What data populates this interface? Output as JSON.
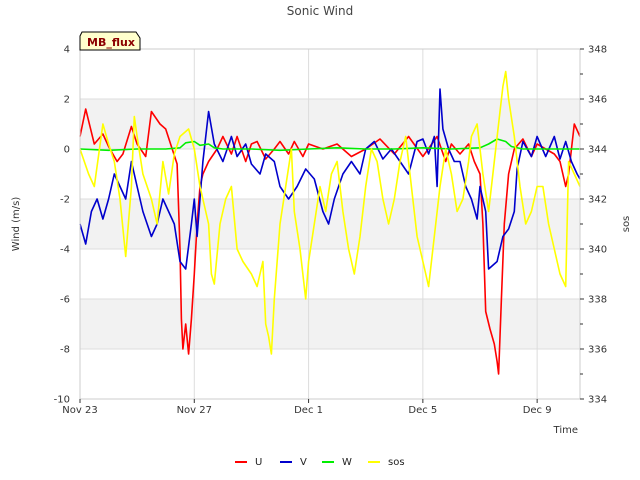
{
  "chart_data": {
    "type": "line",
    "title": "Sonic Wind",
    "xlabel": "Time",
    "ylabel": "Wind (m/s)",
    "y2label": "sos",
    "badge": "MB_flux",
    "x_range_days": [
      0,
      17.5
    ],
    "ylim": [
      -10,
      4
    ],
    "y2lim": [
      334,
      348
    ],
    "x_ticks": [
      {
        "day": 0,
        "label": "Nov 23"
      },
      {
        "day": 4,
        "label": "Nov 27"
      },
      {
        "day": 8,
        "label": "Dec 1"
      },
      {
        "day": 12,
        "label": "Dec 5"
      },
      {
        "day": 16,
        "label": "Dec 9"
      }
    ],
    "y_ticks": [
      4,
      2,
      0,
      -2,
      -4,
      -6,
      -8,
      -10
    ],
    "y2_ticks": [
      348,
      346,
      344,
      342,
      340,
      338,
      336,
      334
    ],
    "series": [
      {
        "name": "U",
        "axis": "left",
        "color": "#ff0000",
        "points": [
          [
            0.0,
            0.5
          ],
          [
            0.2,
            1.6
          ],
          [
            0.5,
            0.2
          ],
          [
            0.8,
            0.6
          ],
          [
            1.0,
            0.1
          ],
          [
            1.3,
            -0.5
          ],
          [
            1.5,
            -0.2
          ],
          [
            1.8,
            0.9
          ],
          [
            2.0,
            0.2
          ],
          [
            2.3,
            -0.3
          ],
          [
            2.5,
            1.5
          ],
          [
            2.8,
            1.0
          ],
          [
            3.0,
            0.8
          ],
          [
            3.2,
            0.1
          ],
          [
            3.4,
            -0.6
          ],
          [
            3.5,
            -4.0
          ],
          [
            3.55,
            -6.8
          ],
          [
            3.6,
            -8.0
          ],
          [
            3.7,
            -7.0
          ],
          [
            3.8,
            -8.2
          ],
          [
            3.9,
            -6.8
          ],
          [
            4.0,
            -5.0
          ],
          [
            4.1,
            -3.0
          ],
          [
            4.2,
            -1.5
          ],
          [
            4.3,
            -1.0
          ],
          [
            4.5,
            -0.5
          ],
          [
            4.8,
            0.0
          ],
          [
            5.0,
            0.5
          ],
          [
            5.3,
            -0.2
          ],
          [
            5.5,
            0.5
          ],
          [
            5.8,
            -0.5
          ],
          [
            6.0,
            0.2
          ],
          [
            6.2,
            0.3
          ],
          [
            6.5,
            -0.4
          ],
          [
            6.8,
            0.0
          ],
          [
            7.0,
            0.3
          ],
          [
            7.3,
            -0.2
          ],
          [
            7.5,
            0.3
          ],
          [
            7.8,
            -0.3
          ],
          [
            8.0,
            0.2
          ],
          [
            8.5,
            0.0
          ],
          [
            9.0,
            0.2
          ],
          [
            9.5,
            -0.3
          ],
          [
            10.0,
            0.0
          ],
          [
            10.5,
            0.4
          ],
          [
            11.0,
            -0.2
          ],
          [
            11.5,
            0.5
          ],
          [
            12.0,
            -0.3
          ],
          [
            12.5,
            0.5
          ],
          [
            12.8,
            -0.5
          ],
          [
            13.0,
            0.2
          ],
          [
            13.3,
            -0.2
          ],
          [
            13.6,
            0.2
          ],
          [
            13.8,
            -0.5
          ],
          [
            14.0,
            -1.0
          ],
          [
            14.1,
            -3.0
          ],
          [
            14.2,
            -6.5
          ],
          [
            14.35,
            -7.2
          ],
          [
            14.5,
            -7.8
          ],
          [
            14.6,
            -8.5
          ],
          [
            14.65,
            -9.0
          ],
          [
            14.75,
            -6.0
          ],
          [
            14.85,
            -3.0
          ],
          [
            15.0,
            -1.0
          ],
          [
            15.2,
            0.0
          ],
          [
            15.5,
            0.4
          ],
          [
            15.8,
            -0.3
          ],
          [
            16.0,
            0.2
          ],
          [
            16.3,
            0.0
          ],
          [
            16.6,
            -0.2
          ],
          [
            16.8,
            -0.5
          ],
          [
            17.0,
            -1.5
          ],
          [
            17.1,
            -1.0
          ],
          [
            17.3,
            1.0
          ],
          [
            17.5,
            0.5
          ]
        ]
      },
      {
        "name": "V",
        "axis": "left",
        "color": "#0000cc",
        "points": [
          [
            0.0,
            -3.0
          ],
          [
            0.2,
            -3.8
          ],
          [
            0.4,
            -2.5
          ],
          [
            0.6,
            -2.0
          ],
          [
            0.8,
            -2.8
          ],
          [
            1.0,
            -2.0
          ],
          [
            1.2,
            -1.0
          ],
          [
            1.4,
            -1.5
          ],
          [
            1.6,
            -2.0
          ],
          [
            1.8,
            -0.5
          ],
          [
            2.0,
            -1.5
          ],
          [
            2.2,
            -2.5
          ],
          [
            2.5,
            -3.5
          ],
          [
            2.7,
            -3.0
          ],
          [
            2.9,
            -2.0
          ],
          [
            3.1,
            -2.5
          ],
          [
            3.3,
            -3.0
          ],
          [
            3.5,
            -4.5
          ],
          [
            3.7,
            -4.8
          ],
          [
            3.9,
            -3.0
          ],
          [
            4.0,
            -2.0
          ],
          [
            4.1,
            -3.5
          ],
          [
            4.2,
            -2.0
          ],
          [
            4.3,
            -0.5
          ],
          [
            4.5,
            1.5
          ],
          [
            4.7,
            0.2
          ],
          [
            5.0,
            -0.5
          ],
          [
            5.3,
            0.5
          ],
          [
            5.5,
            -0.3
          ],
          [
            5.8,
            0.2
          ],
          [
            6.0,
            -0.6
          ],
          [
            6.3,
            -1.0
          ],
          [
            6.5,
            -0.2
          ],
          [
            6.8,
            -0.5
          ],
          [
            7.0,
            -1.5
          ],
          [
            7.3,
            -2.0
          ],
          [
            7.6,
            -1.5
          ],
          [
            7.9,
            -0.8
          ],
          [
            8.2,
            -1.2
          ],
          [
            8.5,
            -2.5
          ],
          [
            8.7,
            -3.0
          ],
          [
            8.9,
            -2.0
          ],
          [
            9.2,
            -1.0
          ],
          [
            9.5,
            -0.5
          ],
          [
            9.8,
            -1.0
          ],
          [
            10.0,
            0.0
          ],
          [
            10.3,
            0.3
          ],
          [
            10.6,
            -0.4
          ],
          [
            10.9,
            0.0
          ],
          [
            11.2,
            -0.5
          ],
          [
            11.5,
            -1.0
          ],
          [
            11.8,
            0.3
          ],
          [
            12.0,
            0.4
          ],
          [
            12.2,
            -0.2
          ],
          [
            12.4,
            0.5
          ],
          [
            12.5,
            -1.5
          ],
          [
            12.6,
            2.4
          ],
          [
            12.7,
            0.8
          ],
          [
            12.9,
            0.0
          ],
          [
            13.1,
            -0.5
          ],
          [
            13.3,
            -0.5
          ],
          [
            13.5,
            -1.5
          ],
          [
            13.7,
            -2.0
          ],
          [
            13.9,
            -2.8
          ],
          [
            14.0,
            -1.5
          ],
          [
            14.2,
            -2.5
          ],
          [
            14.3,
            -4.8
          ],
          [
            14.6,
            -4.5
          ],
          [
            14.8,
            -3.5
          ],
          [
            15.0,
            -3.2
          ],
          [
            15.2,
            -2.5
          ],
          [
            15.3,
            -0.8
          ],
          [
            15.5,
            0.3
          ],
          [
            15.8,
            -0.3
          ],
          [
            16.0,
            0.5
          ],
          [
            16.3,
            -0.3
          ],
          [
            16.6,
            0.5
          ],
          [
            16.8,
            -0.4
          ],
          [
            17.0,
            0.3
          ],
          [
            17.2,
            -0.5
          ],
          [
            17.4,
            -1.0
          ],
          [
            17.5,
            -1.2
          ]
        ]
      },
      {
        "name": "W",
        "axis": "left",
        "color": "#00ee00",
        "points": [
          [
            0.0,
            0.0
          ],
          [
            1.0,
            -0.05
          ],
          [
            2.0,
            0.0
          ],
          [
            3.0,
            0.0
          ],
          [
            3.5,
            0.05
          ],
          [
            3.7,
            0.25
          ],
          [
            4.0,
            0.3
          ],
          [
            4.2,
            0.15
          ],
          [
            4.5,
            0.2
          ],
          [
            4.7,
            0.05
          ],
          [
            5.0,
            0.0
          ],
          [
            6.0,
            0.0
          ],
          [
            7.0,
            -0.05
          ],
          [
            8.0,
            0.0
          ],
          [
            9.0,
            0.05
          ],
          [
            10.0,
            0.0
          ],
          [
            11.0,
            0.0
          ],
          [
            12.0,
            0.05
          ],
          [
            13.0,
            0.0
          ],
          [
            14.0,
            0.05
          ],
          [
            14.3,
            0.2
          ],
          [
            14.6,
            0.4
          ],
          [
            14.9,
            0.3
          ],
          [
            15.1,
            0.1
          ],
          [
            15.5,
            0.0
          ],
          [
            16.5,
            0.0
          ],
          [
            17.5,
            0.0
          ]
        ]
      },
      {
        "name": "sos",
        "axis": "right",
        "color": "#ffff00",
        "points": [
          [
            0.0,
            344.0
          ],
          [
            0.3,
            343.0
          ],
          [
            0.5,
            342.5
          ],
          [
            0.8,
            345.0
          ],
          [
            1.0,
            344.2
          ],
          [
            1.2,
            343.5
          ],
          [
            1.4,
            342.0
          ],
          [
            1.6,
            339.7
          ],
          [
            1.8,
            342.5
          ],
          [
            1.9,
            345.3
          ],
          [
            2.0,
            344.5
          ],
          [
            2.2,
            343.0
          ],
          [
            2.5,
            342.0
          ],
          [
            2.7,
            341.0
          ],
          [
            2.9,
            343.5
          ],
          [
            3.1,
            342.2
          ],
          [
            3.3,
            343.8
          ],
          [
            3.5,
            344.5
          ],
          [
            3.8,
            344.8
          ],
          [
            4.0,
            344.0
          ],
          [
            4.2,
            342.5
          ],
          [
            4.5,
            341.0
          ],
          [
            4.6,
            339.0
          ],
          [
            4.7,
            338.6
          ],
          [
            4.9,
            341.0
          ],
          [
            5.1,
            342.0
          ],
          [
            5.3,
            342.5
          ],
          [
            5.5,
            340.0
          ],
          [
            5.7,
            339.5
          ],
          [
            6.0,
            339.0
          ],
          [
            6.2,
            338.5
          ],
          [
            6.4,
            339.5
          ],
          [
            6.5,
            337.0
          ],
          [
            6.6,
            336.5
          ],
          [
            6.7,
            335.8
          ],
          [
            6.8,
            338.0
          ],
          [
            7.0,
            341.0
          ],
          [
            7.2,
            342.5
          ],
          [
            7.4,
            344.0
          ],
          [
            7.5,
            341.5
          ],
          [
            7.7,
            340.0
          ],
          [
            7.9,
            338.0
          ],
          [
            8.0,
            339.5
          ],
          [
            8.2,
            341.0
          ],
          [
            8.4,
            342.5
          ],
          [
            8.6,
            341.5
          ],
          [
            8.8,
            343.0
          ],
          [
            9.0,
            343.5
          ],
          [
            9.2,
            341.5
          ],
          [
            9.4,
            340.0
          ],
          [
            9.6,
            339.0
          ],
          [
            9.8,
            340.5
          ],
          [
            10.0,
            342.5
          ],
          [
            10.2,
            344.0
          ],
          [
            10.4,
            343.5
          ],
          [
            10.6,
            342.0
          ],
          [
            10.8,
            341.0
          ],
          [
            11.0,
            342.0
          ],
          [
            11.2,
            343.5
          ],
          [
            11.4,
            344.5
          ],
          [
            11.6,
            342.5
          ],
          [
            11.8,
            340.5
          ],
          [
            12.0,
            339.5
          ],
          [
            12.2,
            338.5
          ],
          [
            12.4,
            340.5
          ],
          [
            12.6,
            342.5
          ],
          [
            12.8,
            344.0
          ],
          [
            13.0,
            343.0
          ],
          [
            13.2,
            341.5
          ],
          [
            13.4,
            342.0
          ],
          [
            13.6,
            343.5
          ],
          [
            13.7,
            344.5
          ],
          [
            13.9,
            345.0
          ],
          [
            14.1,
            343.0
          ],
          [
            14.3,
            341.5
          ],
          [
            14.5,
            343.5
          ],
          [
            14.7,
            345.5
          ],
          [
            14.8,
            346.5
          ],
          [
            14.9,
            347.1
          ],
          [
            15.0,
            346.0
          ],
          [
            15.2,
            344.5
          ],
          [
            15.4,
            342.5
          ],
          [
            15.6,
            341.0
          ],
          [
            15.8,
            341.5
          ],
          [
            16.0,
            342.5
          ],
          [
            16.2,
            342.5
          ],
          [
            16.4,
            341.0
          ],
          [
            16.6,
            340.0
          ],
          [
            16.8,
            339.0
          ],
          [
            17.0,
            338.5
          ],
          [
            17.1,
            343.5
          ],
          [
            17.3,
            343.0
          ],
          [
            17.5,
            342.5
          ]
        ]
      }
    ]
  }
}
